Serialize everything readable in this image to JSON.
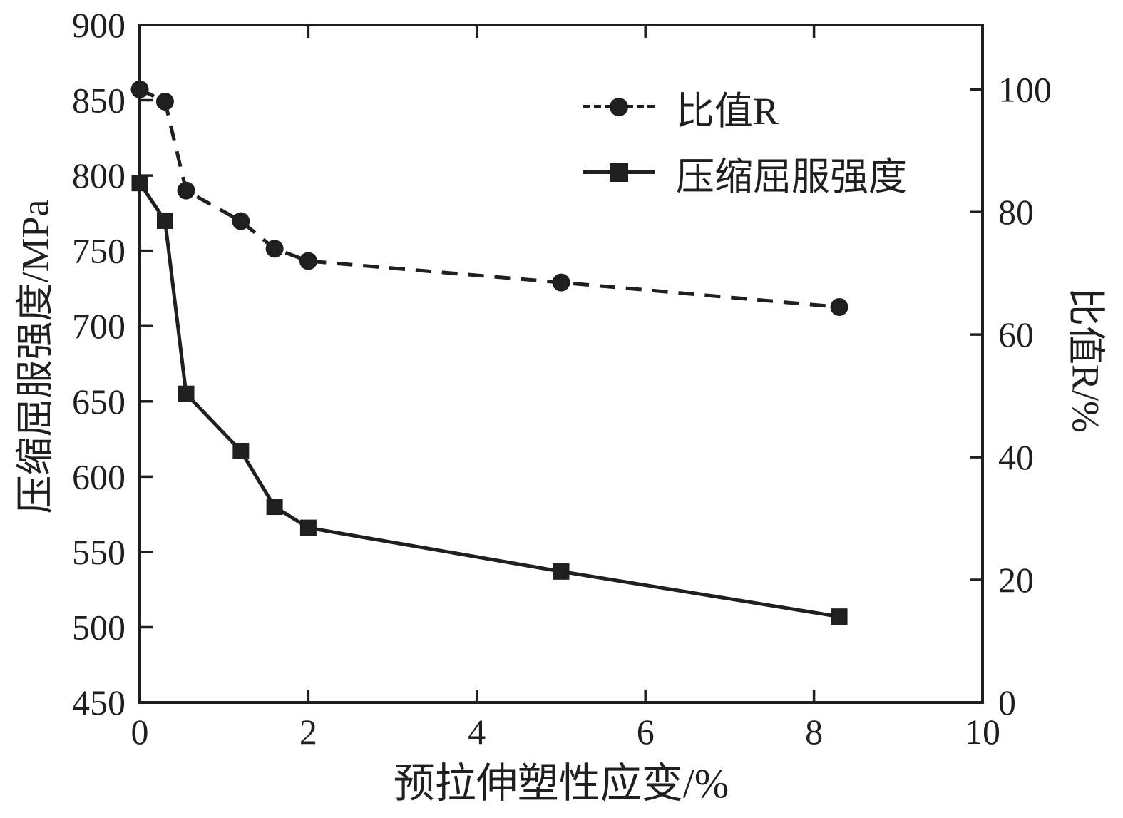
{
  "figure": {
    "background": "#ffffff",
    "ink_color": "#1f1f1f"
  },
  "chart_data": {
    "type": "line",
    "title": "",
    "xlabel": "预拉伸塑性应变/%",
    "ylabel_left": "压缩屈服强度/MPa",
    "ylabel_right": "比值R/%",
    "xlim": [
      0,
      10
    ],
    "x_ticks": [
      0,
      2,
      4,
      6,
      8,
      10
    ],
    "ylim_left": [
      450,
      900
    ],
    "y_ticks_left": [
      450,
      500,
      550,
      600,
      650,
      700,
      750,
      800,
      850,
      900
    ],
    "ylim_right": [
      0,
      110.5
    ],
    "y_ticks_right": [
      0,
      20,
      40,
      60,
      80,
      100
    ],
    "grid": false,
    "legend_position": "upper-center-right-inside",
    "series": [
      {
        "name": "比值R",
        "axis": "right",
        "marker": "circle",
        "line_style": "dashed",
        "color": "#1f1f1f",
        "x": [
          0,
          0.3,
          0.55,
          1.2,
          1.6,
          2.0,
          5.0,
          8.3
        ],
        "y": [
          100,
          98,
          83.5,
          78.5,
          74,
          72,
          68.5,
          64.5
        ]
      },
      {
        "name": "压缩屈服强度",
        "axis": "left",
        "marker": "square",
        "line_style": "solid",
        "color": "#1f1f1f",
        "x": [
          0,
          0.3,
          0.55,
          1.2,
          1.6,
          2.0,
          5.0,
          8.3
        ],
        "y": [
          795,
          770,
          655,
          617,
          580,
          566,
          537,
          507
        ]
      }
    ]
  }
}
